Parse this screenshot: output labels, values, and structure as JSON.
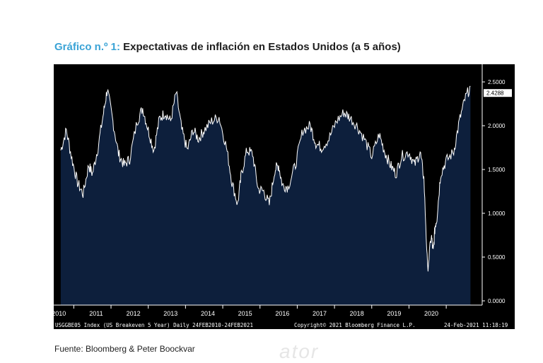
{
  "header": {
    "title_prefix": "Gráfico n.º 1:",
    "title_text": "Expectativas de inflación en Estados Unidos (a 5 años)"
  },
  "chart_data": {
    "type": "area",
    "title": "Expectativas de inflación en Estados Unidos (a 5 años)",
    "ylim": [
      0,
      2.6
    ],
    "y_ticks": [
      "2.5000",
      "2.0000",
      "1.5000",
      "1.0000",
      "0.5000",
      "0.0000"
    ],
    "x_labels": [
      "2010",
      "2011",
      "2012",
      "2013",
      "2014",
      "2015",
      "2016",
      "2017",
      "2018",
      "2019",
      "2020"
    ],
    "last_value_label": "2.4288",
    "series": [
      {
        "x": [
          2010.15,
          2010.3,
          2010.45,
          2010.6,
          2010.75,
          2010.9,
          2011.0,
          2011.15,
          2011.3,
          2011.4,
          2011.55,
          2011.7,
          2011.85,
          2012.0,
          2012.2,
          2012.35,
          2012.5,
          2012.65,
          2012.8,
          2012.95,
          2013.1,
          2013.25,
          2013.4,
          2013.55,
          2013.7,
          2013.85,
          2014.0,
          2014.2,
          2014.4,
          2014.6,
          2014.75,
          2014.9,
          2015.0,
          2015.15,
          2015.3,
          2015.45,
          2015.6,
          2015.75,
          2015.9,
          2016.0,
          2016.1,
          2016.25,
          2016.45,
          2016.65,
          2016.85,
          2017.0,
          2017.15,
          2017.35,
          2017.55,
          2017.75,
          2017.9,
          2018.1,
          2018.3,
          2018.5,
          2018.7,
          2018.85,
          2019.0,
          2019.15,
          2019.3,
          2019.5,
          2019.65,
          2019.8,
          2019.9,
          2020.0,
          2020.1,
          2020.15,
          2020.2,
          2020.25,
          2020.35,
          2020.5,
          2020.7,
          2020.85,
          2021.0,
          2021.15
        ],
        "values": [
          1.72,
          1.95,
          1.62,
          1.35,
          1.22,
          1.55,
          1.45,
          1.75,
          2.15,
          2.42,
          2.05,
          1.68,
          1.55,
          1.62,
          2.05,
          2.2,
          1.95,
          1.72,
          2.08,
          2.15,
          2.05,
          2.38,
          1.95,
          1.72,
          1.95,
          1.85,
          1.95,
          2.05,
          2.1,
          1.75,
          1.35,
          1.1,
          1.45,
          1.72,
          1.68,
          1.28,
          1.25,
          1.1,
          1.5,
          1.55,
          1.32,
          1.3,
          1.55,
          1.95,
          2.0,
          1.8,
          1.75,
          1.85,
          2.05,
          2.15,
          2.1,
          2.0,
          1.85,
          1.65,
          1.9,
          1.7,
          1.55,
          1.45,
          1.65,
          1.7,
          1.55,
          1.7,
          1.4,
          0.35,
          0.75,
          0.55,
          0.85,
          0.95,
          1.45,
          1.6,
          1.7,
          2.05,
          2.3,
          2.45
        ]
      }
    ]
  },
  "bloomberg": {
    "index_text": "USGGBE05 Index (US Breakeven 5 Year)  Daily 24FEB2010-24FEB2021",
    "copyright_text": "Copyright© 2021 Bloomberg Finance L.P.",
    "timestamp_text": "24-Feb-2021 11:18:19"
  },
  "footer": {
    "source": "Fuente: Bloomberg & Peter Boockvar",
    "watermark": "ator"
  },
  "colors": {
    "title_prefix": "#3aa3d6",
    "panel_bg": "#000000",
    "area_fill": "#0d1f3c",
    "line": "#ffffff"
  }
}
